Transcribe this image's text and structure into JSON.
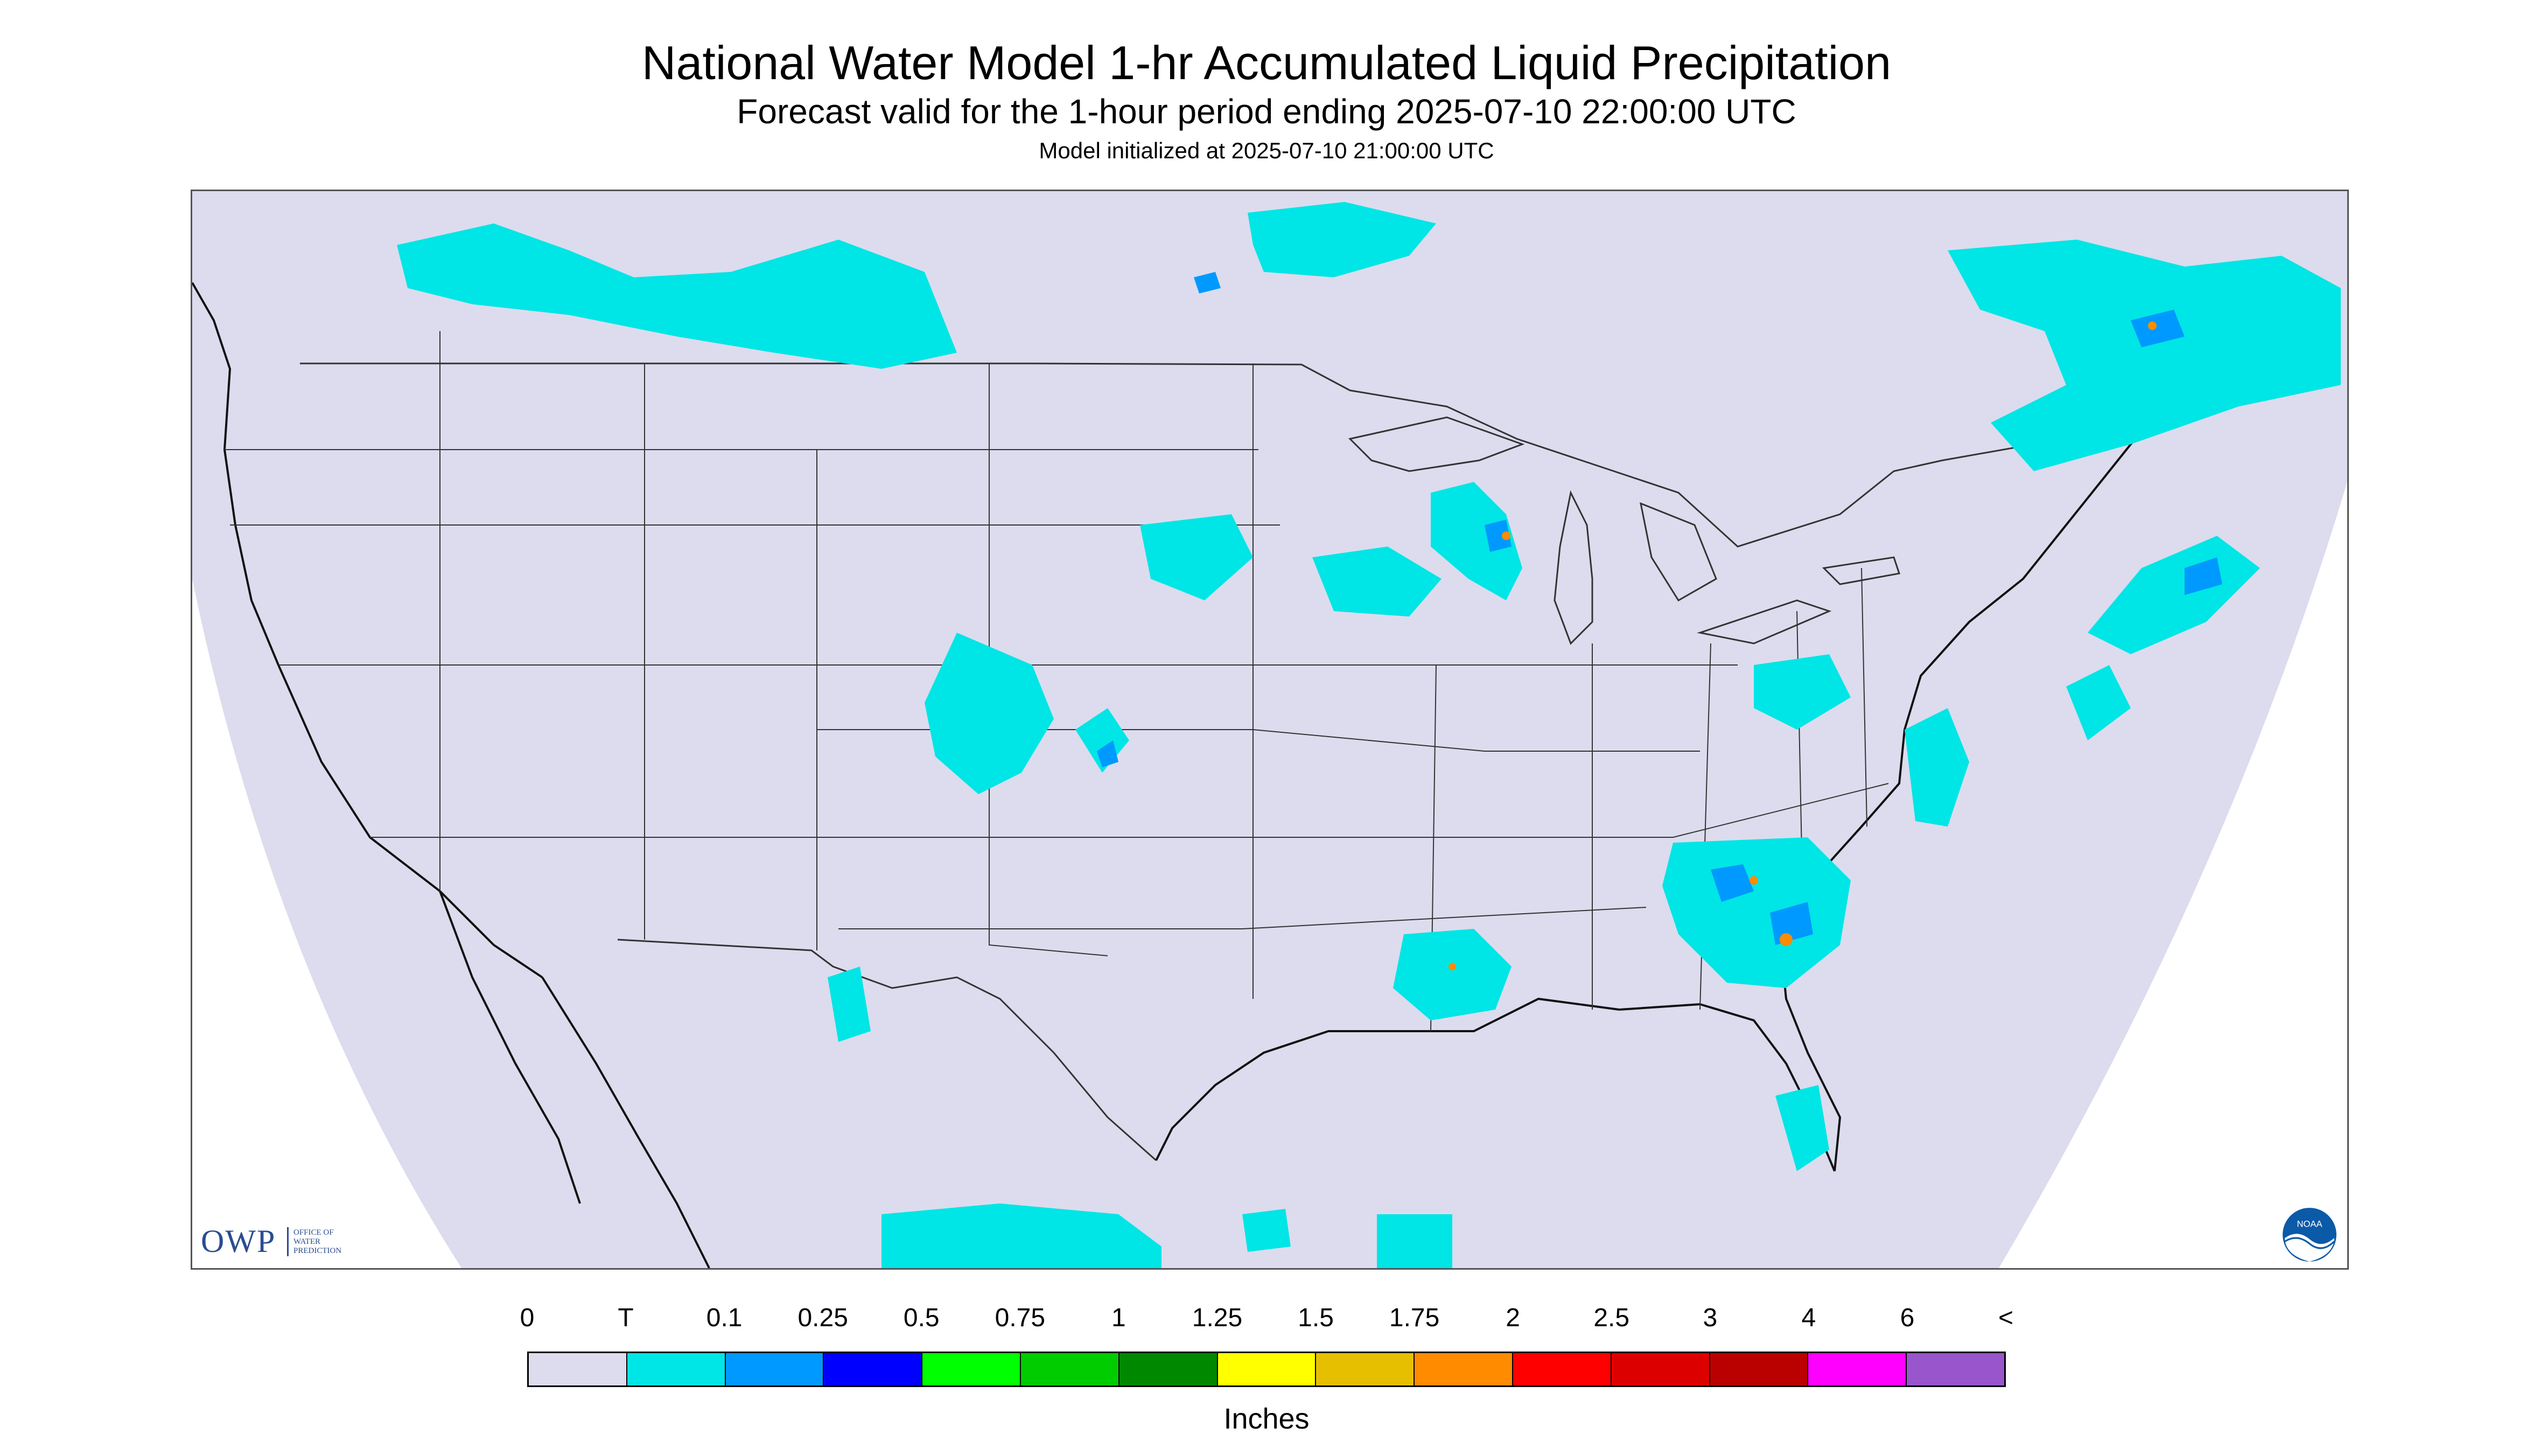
{
  "title": "National Water Model 1-hr Accumulated Liquid Precipitation",
  "subtitle": "Forecast valid for the 1-hour period ending 2025-07-10 22:00:00 UTC",
  "init_line": "Model initialized at 2025-07-10 21:00:00 UTC",
  "map": {
    "domain_fill_color": "#dcdcee",
    "outside_color": "#ffffff",
    "boundary_color": "#333333",
    "coast_color": "#111111"
  },
  "legend": {
    "labels": [
      "0",
      "T",
      "0.1",
      "0.25",
      "0.5",
      "0.75",
      "1",
      "1.25",
      "1.5",
      "1.75",
      "2",
      "2.5",
      "3",
      "4",
      "6",
      "<"
    ],
    "colors": [
      "#dcdcee",
      "#00e5e5",
      "#0099ff",
      "#0000ff",
      "#00ff00",
      "#00cc00",
      "#008800",
      "#ffff00",
      "#e6c000",
      "#ff8c00",
      "#ff0000",
      "#dd0000",
      "#bb0000",
      "#ff00ff",
      "#9955cc"
    ],
    "units": "Inches"
  },
  "logos": {
    "owp_letters": "OWP",
    "owp_text": [
      "OFFICE OF",
      "WATER",
      "PREDICTION"
    ],
    "noaa_text": "NOAA"
  }
}
